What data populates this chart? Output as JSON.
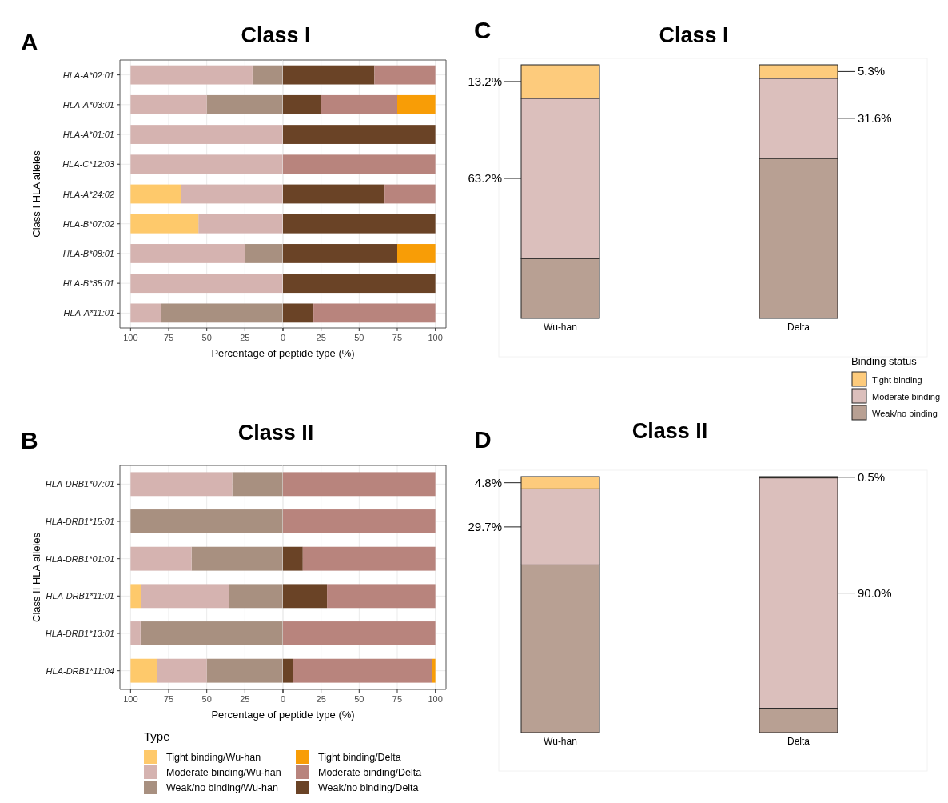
{
  "chart_data": [
    {
      "type": "bar",
      "orientation": "horizontal",
      "stacked": true,
      "title": "Class I",
      "annotations": [
        "A"
      ],
      "xlabel": "Percentage of peptide type (%)",
      "ylabel": "Class I HLA alleles",
      "categories": [
        "HLA-A*02:01",
        "HLA-A*03:01",
        "HLA-A*01:01",
        "HLA-C*12:03",
        "HLA-A*24:02",
        "HLA-B*07:02",
        "HLA-B*08:01",
        "HLA-B*35:01",
        "HLA-A*11:01"
      ],
      "xlim": [
        107,
        0
      ],
      "xticks": [
        100,
        75,
        50,
        25,
        0
      ],
      "grid": true,
      "legend": false,
      "series": [
        {
          "color": "#a89080",
          "values": [
            20,
            50,
            0,
            0,
            0,
            0,
            25,
            0,
            80
          ]
        },
        {
          "color": "#d5b3b0",
          "values": [
            80,
            50,
            100,
            100,
            66.7,
            55.5,
            75,
            100,
            20
          ]
        },
        {
          "color": "#fec96b",
          "values": [
            0,
            0,
            0,
            0,
            33.3,
            44.5,
            0,
            0,
            0
          ]
        }
      ]
    },
    {
      "type": "bar",
      "orientation": "horizontal",
      "stacked": true,
      "categories": [
        null,
        null,
        null,
        null,
        null,
        null,
        null,
        null,
        null
      ],
      "xlim": [
        0,
        107
      ],
      "xticks": [
        {
          "value": 0,
          "label": null
        },
        25,
        50,
        75,
        100
      ],
      "tick_labels": "x",
      "grid": true,
      "legend": false,
      "series": [
        {
          "color": "#6a4326",
          "values": [
            60,
            25,
            100,
            0,
            66.7,
            100,
            75,
            100,
            20
          ]
        },
        {
          "color": "#b8847d",
          "values": [
            40,
            50,
            0,
            100,
            33.3,
            0,
            0,
            0,
            80
          ]
        },
        {
          "color": "#f89d06",
          "values": [
            0,
            25,
            0,
            0,
            0,
            0,
            25,
            0,
            0
          ]
        }
      ]
    },
    {
      "type": "bar",
      "stacked": true,
      "title": "Class I",
      "annotations": [
        "C"
      ],
      "categories": [
        "Wu-han",
        "Delta"
      ],
      "ylim": [
        0,
        100
      ],
      "tick_labels": "x",
      "legend": "bottom right",
      "legend_title": "Binding status",
      "series": [
        {
          "name": "Weak/no binding",
          "color": "#b8a093",
          "values": [
            23.6,
            63.1
          ],
          "value_labels": [
            null,
            null
          ]
        },
        {
          "name": "Moderate binding",
          "color": "#dbbfbc",
          "values": [
            63.2,
            31.6
          ],
          "value_labels": [
            "63.2%",
            "31.6%"
          ]
        },
        {
          "name": "Tight binding",
          "color": "#fdcb7c",
          "values": [
            13.2,
            5.3
          ],
          "value_labels": [
            "13.2%",
            "5.3%"
          ]
        }
      ]
    },
    {
      "type": "bar",
      "orientation": "horizontal",
      "stacked": true,
      "title": "Class II",
      "annotations": [
        "B"
      ],
      "xlabel": "Percentage of peptide type (%)",
      "ylabel": "Class II HLA alleles",
      "legend_title": "Type",
      "categories": [
        "HLA-DRB1*07:01",
        "HLA-DRB1*15:01",
        "HLA-DRB1*01:01",
        "HLA-DRB1*11:01",
        "HLA-DRB1*13:01",
        "HLA-DRB1*11:04"
      ],
      "xlim": [
        107,
        0
      ],
      "xticks": [
        100,
        75,
        50,
        25,
        0
      ],
      "grid": true,
      "legend": "bottom",
      "series": [
        {
          "name": "Weak/no binding/Wu-han",
          "color": "#a89080",
          "values": [
            33.3,
            100,
            60,
            35.3,
            93.5,
            50
          ]
        },
        {
          "name": "Moderate binding/Wu-han",
          "color": "#d5b3b0",
          "values": [
            66.7,
            0,
            40,
            58,
            6.5,
            32.5
          ]
        },
        {
          "name": "Tight binding/Wu-han",
          "color": "#fec96b",
          "values": [
            0,
            0,
            0,
            6.7,
            0,
            17.5
          ]
        }
      ]
    },
    {
      "type": "bar",
      "orientation": "horizontal",
      "stacked": true,
      "categories": [
        null,
        null,
        null,
        null,
        null,
        null
      ],
      "xlim": [
        0,
        107
      ],
      "xticks": [
        {
          "value": 0,
          "label": null
        },
        25,
        50,
        75,
        100
      ],
      "tick_labels": "x",
      "grid": true,
      "legend": "bottom",
      "series": [
        {
          "name": "Weak/no binding/Delta",
          "color": "#6a4326",
          "values": [
            0,
            0,
            13,
            28.9,
            0,
            6.7
          ]
        },
        {
          "name": "Moderate binding/Delta",
          "color": "#b8847d",
          "values": [
            100,
            100,
            87,
            71.1,
            100,
            91.3
          ]
        },
        {
          "name": "Tight binding/Delta",
          "color": "#f89d06",
          "values": [
            0,
            0,
            0,
            0,
            0,
            2
          ]
        }
      ]
    },
    {
      "type": "bar",
      "stacked": true,
      "title": "Class II",
      "annotations": [
        "D"
      ],
      "categories": [
        "Wu-han",
        "Delta"
      ],
      "ylim": [
        0,
        100
      ],
      "tick_labels": "x",
      "legend": false,
      "series": [
        {
          "color": "#b8a093",
          "values": [
            65.5,
            9.5
          ],
          "value_labels": [
            null,
            null
          ]
        },
        {
          "color": "#dbbfbc",
          "values": [
            29.7,
            90.0
          ],
          "value_labels": [
            "29.7%",
            "90.0%"
          ]
        },
        {
          "color": "#fdcb7c",
          "values": [
            4.8,
            0.5
          ],
          "value_labels": [
            "4.8%",
            "0.5%"
          ]
        }
      ]
    }
  ]
}
